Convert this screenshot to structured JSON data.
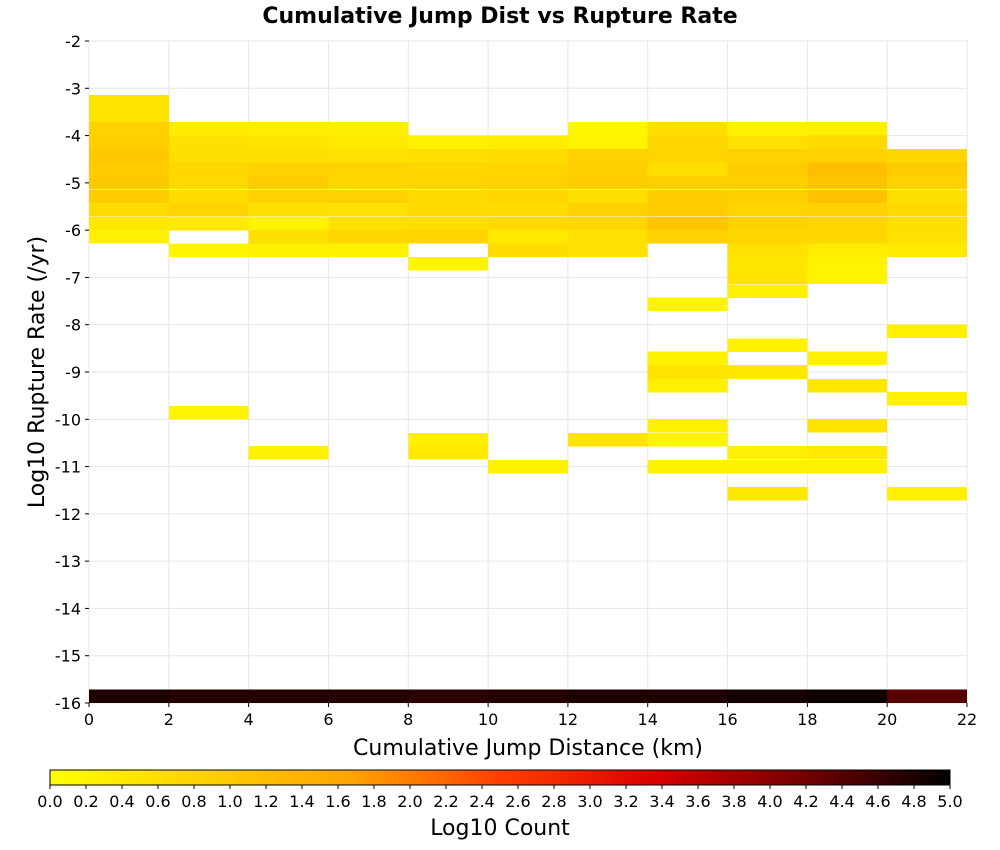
{
  "chart_data": {
    "type": "heatmap",
    "title": "Cumulative Jump Dist vs Rupture Rate",
    "xlabel": "Cumulative Jump Distance (km)",
    "ylabel": "Log10 Rupture Rate (/yr)",
    "xlim": [
      0,
      22
    ],
    "ylim": [
      -16,
      -2
    ],
    "x_ticks": [
      "0",
      "2",
      "4",
      "6",
      "8",
      "10",
      "12",
      "14",
      "16",
      "18",
      "20",
      "22"
    ],
    "y_ticks": [
      "-2",
      "-3",
      "-4",
      "-5",
      "-6",
      "-7",
      "-8",
      "-9",
      "-10",
      "-11",
      "-12",
      "-13",
      "-14",
      "-15",
      "-16"
    ],
    "bin_width_x": 2,
    "bin_height_y": 0.2857,
    "grid": true,
    "colorbar": {
      "label": "Log10 Count",
      "range": [
        0,
        5
      ],
      "ticks": [
        "0.0",
        "0.2",
        "0.4",
        "0.6",
        "0.8",
        "1.0",
        "1.2",
        "1.4",
        "1.6",
        "1.8",
        "2.0",
        "2.2",
        "2.4",
        "2.6",
        "2.8",
        "3.0",
        "3.2",
        "3.4",
        "3.6",
        "3.8",
        "4.0",
        "4.2",
        "4.4",
        "4.6",
        "4.8",
        "5.0"
      ],
      "colors": [
        "#ffff00",
        "#ffd200",
        "#ffa500",
        "#ff4000",
        "#dd0000",
        "#770000",
        "#000000"
      ]
    },
    "cells": [
      {
        "x": 0,
        "y": -3.29,
        "v": 0.5
      },
      {
        "x": 0,
        "y": -3.57,
        "v": 0.5
      },
      {
        "x": 0,
        "y": -3.86,
        "v": 0.85
      },
      {
        "x": 0,
        "y": -4.14,
        "v": 0.9
      },
      {
        "x": 0,
        "y": -4.43,
        "v": 1.0
      },
      {
        "x": 0,
        "y": -4.71,
        "v": 0.95
      },
      {
        "x": 0,
        "y": -5.0,
        "v": 1.0
      },
      {
        "x": 0,
        "y": -5.29,
        "v": 0.95
      },
      {
        "x": 0,
        "y": -5.57,
        "v": 0.65
      },
      {
        "x": 0,
        "y": -5.86,
        "v": 0.45
      },
      {
        "x": 0,
        "y": -6.14,
        "v": 0.3
      },
      {
        "x": 2,
        "y": -3.86,
        "v": 0.35
      },
      {
        "x": 2,
        "y": -4.14,
        "v": 0.55
      },
      {
        "x": 2,
        "y": -4.43,
        "v": 0.6
      },
      {
        "x": 2,
        "y": -4.71,
        "v": 0.75
      },
      {
        "x": 2,
        "y": -5.0,
        "v": 0.7
      },
      {
        "x": 2,
        "y": -5.29,
        "v": 0.65
      },
      {
        "x": 2,
        "y": -5.57,
        "v": 0.8
      },
      {
        "x": 2,
        "y": -5.86,
        "v": 0.4
      },
      {
        "x": 2,
        "y": -6.43,
        "v": 0.2
      },
      {
        "x": 2,
        "y": -9.86,
        "v": 0.2
      },
      {
        "x": 4,
        "y": -3.86,
        "v": 0.35
      },
      {
        "x": 4,
        "y": -4.14,
        "v": 0.5
      },
      {
        "x": 4,
        "y": -4.43,
        "v": 0.6
      },
      {
        "x": 4,
        "y": -4.71,
        "v": 0.85
      },
      {
        "x": 4,
        "y": -5.0,
        "v": 0.95
      },
      {
        "x": 4,
        "y": -5.29,
        "v": 0.85
      },
      {
        "x": 4,
        "y": -5.57,
        "v": 0.6
      },
      {
        "x": 4,
        "y": -5.86,
        "v": 0.2
      },
      {
        "x": 4,
        "y": -6.14,
        "v": 0.6
      },
      {
        "x": 4,
        "y": -6.43,
        "v": 0.25
      },
      {
        "x": 4,
        "y": -10.71,
        "v": 0.25
      },
      {
        "x": 6,
        "y": -3.86,
        "v": 0.3
      },
      {
        "x": 6,
        "y": -4.14,
        "v": 0.4
      },
      {
        "x": 6,
        "y": -4.43,
        "v": 0.55
      },
      {
        "x": 6,
        "y": -4.71,
        "v": 0.8
      },
      {
        "x": 6,
        "y": -5.0,
        "v": 0.75
      },
      {
        "x": 6,
        "y": -5.29,
        "v": 0.85
      },
      {
        "x": 6,
        "y": -5.57,
        "v": 0.55
      },
      {
        "x": 6,
        "y": -5.86,
        "v": 0.6
      },
      {
        "x": 6,
        "y": -6.14,
        "v": 0.75
      },
      {
        "x": 6,
        "y": -6.43,
        "v": 0.25
      },
      {
        "x": 8,
        "y": -4.14,
        "v": 0.25
      },
      {
        "x": 8,
        "y": -4.43,
        "v": 0.6
      },
      {
        "x": 8,
        "y": -4.71,
        "v": 0.75
      },
      {
        "x": 8,
        "y": -5.0,
        "v": 0.8
      },
      {
        "x": 8,
        "y": -5.29,
        "v": 0.7
      },
      {
        "x": 8,
        "y": -5.57,
        "v": 0.7
      },
      {
        "x": 8,
        "y": -5.86,
        "v": 0.6
      },
      {
        "x": 8,
        "y": -6.14,
        "v": 0.8
      },
      {
        "x": 8,
        "y": -6.71,
        "v": 0.2
      },
      {
        "x": 8,
        "y": -10.43,
        "v": 0.3
      },
      {
        "x": 8,
        "y": -10.71,
        "v": 0.4
      },
      {
        "x": 10,
        "y": -4.14,
        "v": 0.35
      },
      {
        "x": 10,
        "y": -4.43,
        "v": 0.65
      },
      {
        "x": 10,
        "y": -4.71,
        "v": 0.8
      },
      {
        "x": 10,
        "y": -5.0,
        "v": 0.85
      },
      {
        "x": 10,
        "y": -5.29,
        "v": 0.75
      },
      {
        "x": 10,
        "y": -5.57,
        "v": 0.65
      },
      {
        "x": 10,
        "y": -5.86,
        "v": 0.7
      },
      {
        "x": 10,
        "y": -6.14,
        "v": 0.4
      },
      {
        "x": 10,
        "y": -6.43,
        "v": 0.65
      },
      {
        "x": 10,
        "y": -11.0,
        "v": 0.25
      },
      {
        "x": 12,
        "y": -3.86,
        "v": 0.15
      },
      {
        "x": 12,
        "y": -4.14,
        "v": 0.2
      },
      {
        "x": 12,
        "y": -4.43,
        "v": 0.85
      },
      {
        "x": 12,
        "y": -4.71,
        "v": 0.9
      },
      {
        "x": 12,
        "y": -5.0,
        "v": 0.95
      },
      {
        "x": 12,
        "y": -5.29,
        "v": 0.6
      },
      {
        "x": 12,
        "y": -5.57,
        "v": 0.85
      },
      {
        "x": 12,
        "y": -5.86,
        "v": 0.75
      },
      {
        "x": 12,
        "y": -6.14,
        "v": 0.55
      },
      {
        "x": 12,
        "y": -6.43,
        "v": 0.55
      },
      {
        "x": 12,
        "y": -10.43,
        "v": 0.5
      },
      {
        "x": 14,
        "y": -3.86,
        "v": 0.6
      },
      {
        "x": 14,
        "y": -4.14,
        "v": 0.75
      },
      {
        "x": 14,
        "y": -4.43,
        "v": 0.8
      },
      {
        "x": 14,
        "y": -4.71,
        "v": 0.6
      },
      {
        "x": 14,
        "y": -5.0,
        "v": 0.9
      },
      {
        "x": 14,
        "y": -5.29,
        "v": 0.95
      },
      {
        "x": 14,
        "y": -5.57,
        "v": 0.95
      },
      {
        "x": 14,
        "y": -5.86,
        "v": 1.05
      },
      {
        "x": 14,
        "y": -6.14,
        "v": 0.85
      },
      {
        "x": 14,
        "y": -7.57,
        "v": 0.2
      },
      {
        "x": 14,
        "y": -8.71,
        "v": 0.25
      },
      {
        "x": 14,
        "y": -9.0,
        "v": 0.5
      },
      {
        "x": 14,
        "y": -9.29,
        "v": 0.3
      },
      {
        "x": 14,
        "y": -10.14,
        "v": 0.25
      },
      {
        "x": 14,
        "y": -10.43,
        "v": 0.2
      },
      {
        "x": 14,
        "y": -11.0,
        "v": 0.25
      },
      {
        "x": 16,
        "y": -3.86,
        "v": 0.25
      },
      {
        "x": 16,
        "y": -4.14,
        "v": 0.55
      },
      {
        "x": 16,
        "y": -4.43,
        "v": 0.85
      },
      {
        "x": 16,
        "y": -4.71,
        "v": 0.95
      },
      {
        "x": 16,
        "y": -5.0,
        "v": 0.9
      },
      {
        "x": 16,
        "y": -5.29,
        "v": 0.9
      },
      {
        "x": 16,
        "y": -5.57,
        "v": 0.8
      },
      {
        "x": 16,
        "y": -5.86,
        "v": 0.85
      },
      {
        "x": 16,
        "y": -6.14,
        "v": 0.75
      },
      {
        "x": 16,
        "y": -6.43,
        "v": 0.55
      },
      {
        "x": 16,
        "y": -6.71,
        "v": 0.45
      },
      {
        "x": 16,
        "y": -7.0,
        "v": 0.5
      },
      {
        "x": 16,
        "y": -7.29,
        "v": 0.3
      },
      {
        "x": 16,
        "y": -8.43,
        "v": 0.25
      },
      {
        "x": 16,
        "y": -9.0,
        "v": 0.45
      },
      {
        "x": 16,
        "y": -10.71,
        "v": 0.3
      },
      {
        "x": 16,
        "y": -11.0,
        "v": 0.3
      },
      {
        "x": 16,
        "y": -11.57,
        "v": 0.45
      },
      {
        "x": 18,
        "y": -3.86,
        "v": 0.3
      },
      {
        "x": 18,
        "y": -4.14,
        "v": 0.7
      },
      {
        "x": 18,
        "y": -4.43,
        "v": 0.85
      },
      {
        "x": 18,
        "y": -4.71,
        "v": 1.2
      },
      {
        "x": 18,
        "y": -5.0,
        "v": 1.1
      },
      {
        "x": 18,
        "y": -5.29,
        "v": 1.15
      },
      {
        "x": 18,
        "y": -5.57,
        "v": 0.85
      },
      {
        "x": 18,
        "y": -5.86,
        "v": 0.8
      },
      {
        "x": 18,
        "y": -6.14,
        "v": 0.75
      },
      {
        "x": 18,
        "y": -6.43,
        "v": 0.35
      },
      {
        "x": 18,
        "y": -6.71,
        "v": 0.2
      },
      {
        "x": 18,
        "y": -7.0,
        "v": 0.2
      },
      {
        "x": 18,
        "y": -8.71,
        "v": 0.3
      },
      {
        "x": 18,
        "y": -9.29,
        "v": 0.45
      },
      {
        "x": 18,
        "y": -10.14,
        "v": 0.5
      },
      {
        "x": 18,
        "y": -10.71,
        "v": 0.4
      },
      {
        "x": 18,
        "y": -11.0,
        "v": 0.3
      },
      {
        "x": 20,
        "y": -4.43,
        "v": 0.75
      },
      {
        "x": 20,
        "y": -4.71,
        "v": 0.95
      },
      {
        "x": 20,
        "y": -5.0,
        "v": 0.85
      },
      {
        "x": 20,
        "y": -5.29,
        "v": 0.6
      },
      {
        "x": 20,
        "y": -5.57,
        "v": 0.7
      },
      {
        "x": 20,
        "y": -5.86,
        "v": 0.6
      },
      {
        "x": 20,
        "y": -6.14,
        "v": 0.55
      },
      {
        "x": 20,
        "y": -6.43,
        "v": 0.4
      },
      {
        "x": 20,
        "y": -8.14,
        "v": 0.3
      },
      {
        "x": 20,
        "y": -9.57,
        "v": 0.3
      },
      {
        "x": 20,
        "y": -11.57,
        "v": 0.3
      },
      {
        "x": 0,
        "y": -15.86,
        "v": 4.8
      },
      {
        "x": 2,
        "y": -15.86,
        "v": 4.75
      },
      {
        "x": 4,
        "y": -15.86,
        "v": 4.75
      },
      {
        "x": 6,
        "y": -15.86,
        "v": 4.75
      },
      {
        "x": 8,
        "y": -15.86,
        "v": 4.7
      },
      {
        "x": 10,
        "y": -15.86,
        "v": 4.75
      },
      {
        "x": 12,
        "y": -15.86,
        "v": 4.8
      },
      {
        "x": 14,
        "y": -15.86,
        "v": 4.8
      },
      {
        "x": 16,
        "y": -15.86,
        "v": 4.85
      },
      {
        "x": 18,
        "y": -15.86,
        "v": 4.9
      },
      {
        "x": 20,
        "y": -15.86,
        "v": 4.4
      }
    ]
  }
}
